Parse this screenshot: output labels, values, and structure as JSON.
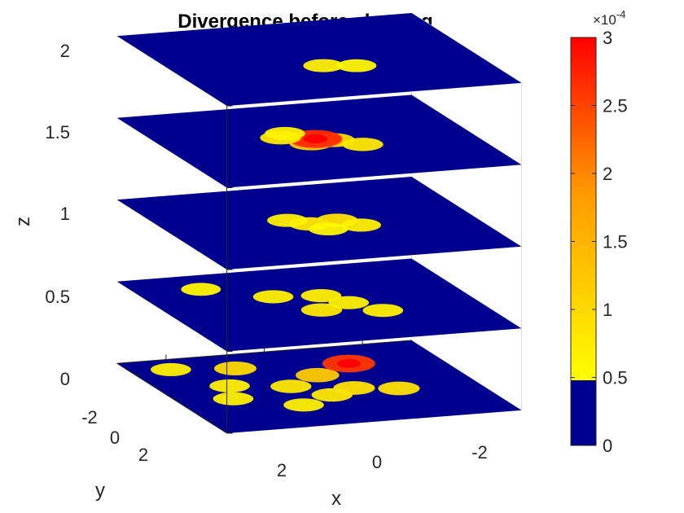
{
  "chart_data": {
    "type": "heatmap",
    "title": "Divergence before cleaning",
    "xlabel": "x",
    "ylabel": "y",
    "zlabel": "z",
    "x_ticks": [
      "2",
      "0",
      "-2"
    ],
    "y_ticks": [
      "-2",
      "0",
      "2"
    ],
    "z_ticks": [
      "0",
      "0.5",
      "1",
      "1.5",
      "2"
    ],
    "slices_z": [
      0,
      0.5,
      1,
      1.5,
      2
    ],
    "colorbar": {
      "ticks": [
        "0",
        "0.5",
        "1",
        "1.5",
        "2",
        "2.5",
        "3"
      ],
      "tick_values": [
        0,
        0.5,
        1,
        1.5,
        2,
        2.5,
        3
      ],
      "limits": [
        0,
        3
      ],
      "exponent_label": "×10",
      "exponent": "-4",
      "threshold": 0.5,
      "low_color": "#00008f",
      "high_colors": [
        "#ffff00",
        "#ff8000",
        "#ff0000"
      ]
    },
    "slices": [
      {
        "z": 0,
        "hotspots": [
          {
            "x": 0.0,
            "y": -0.7,
            "v": 0.8
          },
          {
            "x": -0.6,
            "y": -0.3,
            "v": 0.9
          },
          {
            "x": 0.5,
            "y": 0.2,
            "v": 0.8
          },
          {
            "x": -0.3,
            "y": 0.9,
            "v": 1.2
          },
          {
            "x": -1.2,
            "y": 1.6,
            "v": 2.6
          },
          {
            "x": 1.0,
            "y": 1.9,
            "v": 1.0
          },
          {
            "x": 1.9,
            "y": -0.4,
            "v": 0.7
          },
          {
            "x": 1.6,
            "y": 0.6,
            "v": 0.7
          },
          {
            "x": 2.2,
            "y": 2.2,
            "v": 0.7
          },
          {
            "x": -1.4,
            "y": -0.6,
            "v": 0.9
          },
          {
            "x": 0.8,
            "y": -1.3,
            "v": 0.7
          }
        ]
      },
      {
        "z": 0.5,
        "hotspots": [
          {
            "x": 0.1,
            "y": -0.4,
            "v": 0.8
          },
          {
            "x": -0.6,
            "y": 0.0,
            "v": 0.7
          },
          {
            "x": -1.0,
            "y": -0.8,
            "v": 0.7
          },
          {
            "x": 0.6,
            "y": 0.9,
            "v": 0.7
          },
          {
            "x": -0.3,
            "y": 0.7,
            "v": 0.7
          },
          {
            "x": 1.7,
            "y": 1.9,
            "v": 0.6
          }
        ]
      },
      {
        "z": 1,
        "hotspots": [
          {
            "x": 0.2,
            "y": 0.0,
            "v": 0.8
          },
          {
            "x": -0.4,
            "y": 0.1,
            "v": 0.9
          },
          {
            "x": 0.5,
            "y": 0.4,
            "v": 0.7
          },
          {
            "x": -0.7,
            "y": -0.4,
            "v": 0.7
          },
          {
            "x": 0.0,
            "y": -0.5,
            "v": 0.6
          }
        ]
      },
      {
        "z": 1.5,
        "hotspots": [
          {
            "x": 0.2,
            "y": -0.1,
            "v": 1.2
          },
          {
            "x": -0.3,
            "y": 0.0,
            "v": 1.0
          },
          {
            "x": 0.0,
            "y": 0.2,
            "v": 2.7
          },
          {
            "x": -0.7,
            "y": -0.5,
            "v": 0.8
          },
          {
            "x": 0.6,
            "y": 0.5,
            "v": 0.8
          },
          {
            "x": 0.4,
            "y": 0.8,
            "v": 0.7
          }
        ]
      },
      {
        "z": 2,
        "hotspots": [
          {
            "x": 0.1,
            "y": -0.5,
            "v": 0.7
          },
          {
            "x": -0.5,
            "y": -0.7,
            "v": 0.6
          }
        ]
      }
    ]
  }
}
